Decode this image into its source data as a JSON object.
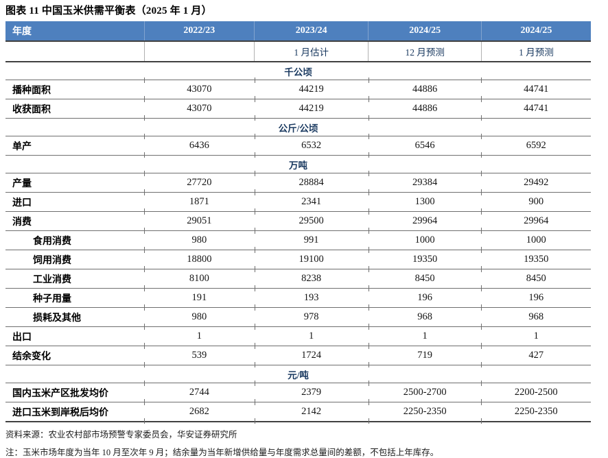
{
  "title": "图表 11 中国玉米供需平衡表（2025 年 1 月）",
  "colors": {
    "header_bg": "#4E80BE",
    "header_text": "#FFFFFF",
    "accent_text": "#17375E",
    "grid_line": "#6E6E6E",
    "strong_line": "#404040"
  },
  "table": {
    "columns": [
      "年度",
      "2022/23",
      "2023/24",
      "2024/25",
      "2024/25"
    ],
    "subheaders": [
      "",
      "",
      "1 月估计",
      "12 月预测",
      "1 月预测"
    ],
    "sections": [
      {
        "unit": "千公顷",
        "rows": [
          {
            "label": "播种面积",
            "indent": false,
            "values": [
              "43070",
              "44219",
              "44886",
              "44741"
            ]
          },
          {
            "label": "收获面积",
            "indent": false,
            "values": [
              "43070",
              "44219",
              "44886",
              "44741"
            ]
          }
        ]
      },
      {
        "unit": "公斤/公顷",
        "rows": [
          {
            "label": "单产",
            "indent": false,
            "values": [
              "6436",
              "6532",
              "6546",
              "6592"
            ]
          }
        ]
      },
      {
        "unit": "万吨",
        "rows": [
          {
            "label": "产量",
            "indent": false,
            "values": [
              "27720",
              "28884",
              "29384",
              "29492"
            ]
          },
          {
            "label": "进口",
            "indent": false,
            "values": [
              "1871",
              "2341",
              "1300",
              "900"
            ]
          },
          {
            "label": "消费",
            "indent": false,
            "values": [
              "29051",
              "29500",
              "29964",
              "29964"
            ]
          },
          {
            "label": "食用消费",
            "indent": true,
            "values": [
              "980",
              "991",
              "1000",
              "1000"
            ]
          },
          {
            "label": "饲用消费",
            "indent": true,
            "values": [
              "18800",
              "19100",
              "19350",
              "19350"
            ]
          },
          {
            "label": "工业消费",
            "indent": true,
            "values": [
              "8100",
              "8238",
              "8450",
              "8450"
            ]
          },
          {
            "label": "种子用量",
            "indent": true,
            "values": [
              "191",
              "193",
              "196",
              "196"
            ]
          },
          {
            "label": "损耗及其他",
            "indent": true,
            "values": [
              "980",
              "978",
              "968",
              "968"
            ]
          },
          {
            "label": "出口",
            "indent": false,
            "values": [
              "1",
              "1",
              "1",
              "1"
            ]
          },
          {
            "label": "结余变化",
            "indent": false,
            "values": [
              "539",
              "1724",
              "719",
              "427"
            ]
          }
        ]
      },
      {
        "unit": "元/吨",
        "rows": [
          {
            "label": "国内玉米产区批发均价",
            "indent": false,
            "values": [
              "2744",
              "2379",
              "2500-2700",
              "2200-2500"
            ]
          },
          {
            "label": "进口玉米到岸税后均价",
            "indent": false,
            "values": [
              "2682",
              "2142",
              "2250-2350",
              "2250-2350"
            ]
          }
        ]
      }
    ]
  },
  "footer": {
    "source": "资料来源：农业农村部市场预警专家委员会，华安证券研究所",
    "note": "注：玉米市场年度为当年 10 月至次年 9 月；结余量为当年新增供给量与年度需求总量间的差额，不包括上年库存。"
  }
}
